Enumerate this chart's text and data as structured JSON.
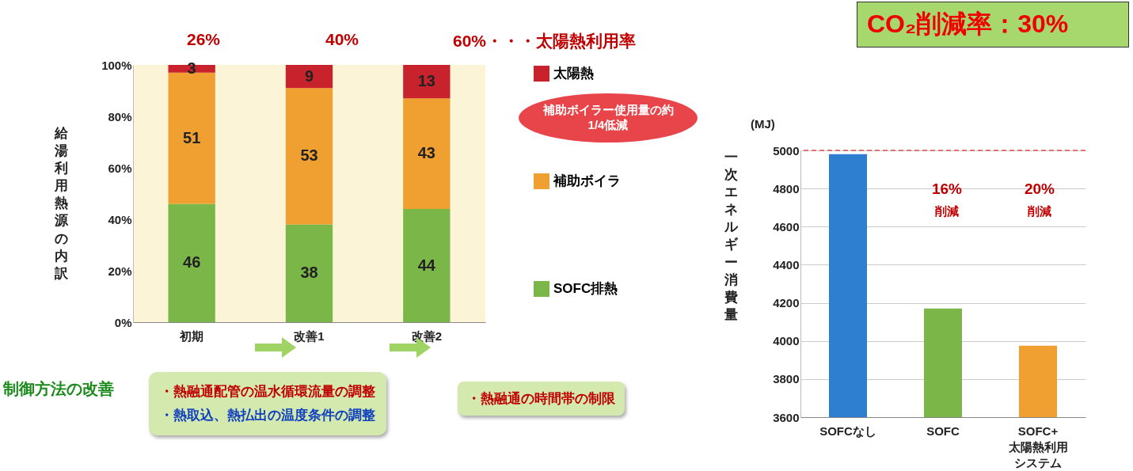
{
  "chart_data": [
    {
      "type": "bar",
      "stacked": true,
      "ylabel": "給湯利用熱源の内訳",
      "categories": [
        "初期",
        "改善1",
        "改善2"
      ],
      "series": [
        {
          "name": "SOFC排熱",
          "color": "#7ab648",
          "values": [
            46,
            38,
            44
          ]
        },
        {
          "name": "補助ボイラ",
          "color": "#f0a030",
          "values": [
            51,
            53,
            43
          ]
        },
        {
          "name": "太陽熱",
          "color": "#c8232c",
          "values": [
            3,
            9,
            13
          ]
        }
      ],
      "ylim": [
        0,
        100
      ],
      "yticks": [
        {
          "value": 0,
          "label": "0%"
        },
        {
          "value": 20,
          "label": "20%"
        },
        {
          "value": 40,
          "label": "40%"
        },
        {
          "value": 60,
          "label": "60%"
        },
        {
          "value": 80,
          "label": "80%"
        },
        {
          "value": 100,
          "label": "100%"
        }
      ],
      "data_labels": true,
      "legend": "right",
      "grid": false,
      "annotations": [
        "26%",
        "40%",
        "60%・・・太陽熱利用率",
        "補助ボイラー使用量の約1/4低減",
        "制御方法の改善",
        "・熱融通配管の温水循環流量の調整",
        "・熱取込、熱払出の温度条件の調整",
        "・熱融通の時間帯の制限"
      ]
    },
    {
      "type": "bar",
      "ylabel": "一次エネルギー消費量",
      "categories": [
        "SOFCなし",
        "SOFC",
        "SOFC+太陽熱利用システム"
      ],
      "values": [
        4980,
        4170,
        3975
      ],
      "colors": [
        "#2f7fd0",
        "#7ab648",
        "#f0a030"
      ],
      "ylim": [
        3600,
        5000
      ],
      "yticks": [
        3600,
        3800,
        4000,
        4200,
        4400,
        4600,
        4800,
        5000
      ],
      "grid": "y",
      "ref_lines": [
        {
          "axis": "y",
          "value": 5000,
          "color": "#e05050",
          "line_style": "dashed"
        }
      ],
      "annotations": [
        "CO₂削減率：30%",
        "(MJ)",
        "16%",
        "削減",
        "20%",
        "削減"
      ]
    }
  ]
}
